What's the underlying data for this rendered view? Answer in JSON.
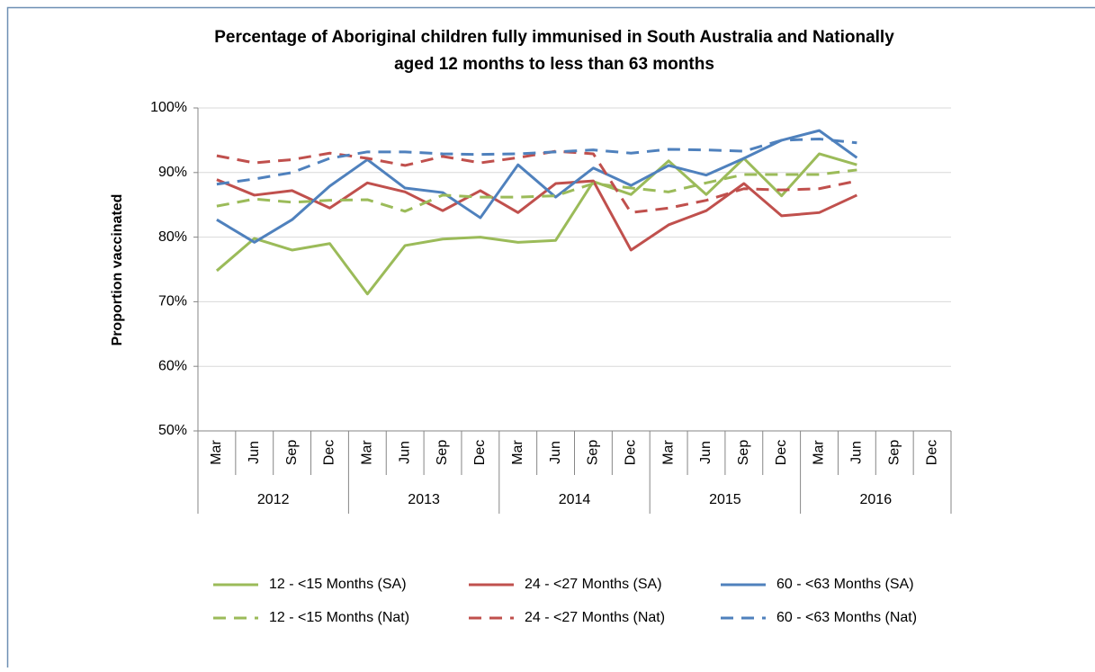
{
  "chart_data": {
    "type": "line",
    "title": [
      "Percentage of Aboriginal children fully immunised in South Australia and Nationally",
      "aged 12 months to less than 63 months"
    ],
    "y_label": "Proportion vaccinated",
    "categories": [
      "Mar",
      "Jun",
      "Sep",
      "Dec",
      "Mar",
      "Jun",
      "Sep",
      "Dec",
      "Mar",
      "Jun",
      "Sep",
      "Dec",
      "Mar",
      "Jun",
      "Sep",
      "Dec",
      "Mar",
      "Jun",
      "Sep",
      "Dec"
    ],
    "years": [
      "2012",
      "2013",
      "2014",
      "2015",
      "2016"
    ],
    "ylim": [
      50,
      100
    ],
    "yticks": [
      {
        "value": 50,
        "label": "50%"
      },
      {
        "value": 60,
        "label": "60%"
      },
      {
        "value": 70,
        "label": "70%"
      },
      {
        "value": 80,
        "label": "80%"
      },
      {
        "value": 90,
        "label": "90%"
      },
      {
        "value": 100,
        "label": "100%"
      }
    ],
    "grid": true,
    "series": [
      {
        "name": "12 - <15 Months (SA)",
        "color": "#9bbb59",
        "line_style": "solid",
        "values": [
          74.8,
          79.8,
          78,
          79,
          71.2,
          78.7,
          79.7,
          80,
          79.2,
          79.5,
          88.6,
          86.6,
          91.8,
          86.6,
          92.2,
          86.4,
          92.9,
          91.2,
          null,
          null
        ]
      },
      {
        "name": "24 - <27 Months (SA)",
        "color": "#c0504d",
        "line_style": "solid",
        "values": [
          88.9,
          86.5,
          87.2,
          84.5,
          88.4,
          87,
          84.1,
          87.2,
          83.8,
          88.3,
          88.7,
          78,
          81.9,
          84.1,
          88.3,
          83.3,
          83.8,
          86.5,
          null,
          null
        ]
      },
      {
        "name": "60 - <63 Months (SA)",
        "color": "#4f81bd",
        "line_style": "solid",
        "values": [
          82.7,
          79.2,
          82.7,
          87.9,
          92,
          87.6,
          86.9,
          83,
          91.2,
          86.2,
          90.7,
          88,
          91.1,
          89.6,
          92.2,
          95,
          96.5,
          92.3,
          null,
          null
        ]
      },
      {
        "name": "12 - <15 Months (Nat)",
        "color": "#9bbb59",
        "line_style": "dashed",
        "values": [
          84.8,
          85.9,
          85.4,
          85.7,
          85.8,
          84,
          86.5,
          86.2,
          86.2,
          86.4,
          88.3,
          87.6,
          87,
          88.4,
          89.7,
          89.7,
          89.7,
          90.4,
          null,
          null
        ]
      },
      {
        "name": "24 - <27 Months (Nat)",
        "color": "#c0504d",
        "line_style": "dashed",
        "values": [
          92.6,
          91.5,
          92,
          93,
          92.2,
          91.1,
          92.5,
          91.5,
          92.3,
          93.3,
          92.9,
          83.8,
          84.5,
          85.7,
          87.5,
          87.3,
          87.5,
          88.7,
          null,
          null
        ]
      },
      {
        "name": "60 - <63 Months (Nat)",
        "color": "#4f81bd",
        "line_style": "dashed",
        "values": [
          88.2,
          89,
          90,
          92.2,
          93.2,
          93.2,
          92.9,
          92.8,
          92.9,
          93.2,
          93.5,
          93,
          93.6,
          93.5,
          93.3,
          95,
          95.2,
          94.6,
          null,
          null
        ]
      }
    ]
  }
}
